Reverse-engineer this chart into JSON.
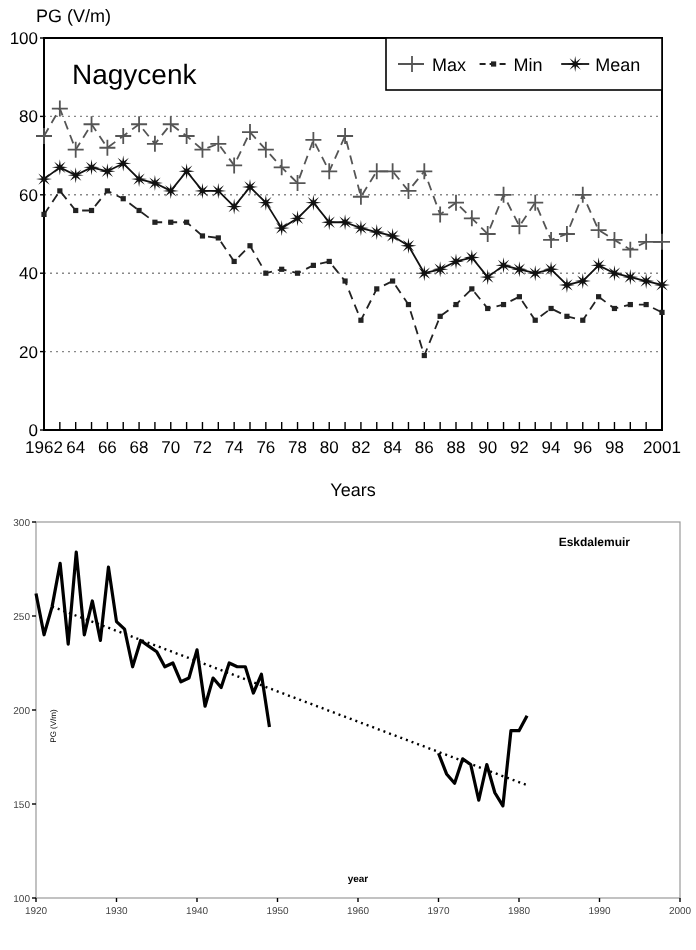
{
  "chart_data": [
    {
      "type": "line",
      "title": "Nagycenk",
      "ylabel": "PG (V/m)",
      "xlabel": "Years",
      "x": [
        1962,
        1963,
        1964,
        1965,
        1966,
        1967,
        1968,
        1969,
        1970,
        1971,
        1972,
        1973,
        1974,
        1975,
        1976,
        1977,
        1978,
        1979,
        1980,
        1981,
        1982,
        1983,
        1984,
        1985,
        1986,
        1987,
        1988,
        1989,
        1990,
        1991,
        1992,
        1993,
        1994,
        1995,
        1996,
        1997,
        1998,
        1999,
        2000,
        2001
      ],
      "xlim": [
        1962,
        2001
      ],
      "ylim": [
        0,
        100
      ],
      "yticks": [
        0,
        20,
        40,
        60,
        80,
        100
      ],
      "xticks": [
        {
          "value": 1962,
          "label": "1962"
        },
        {
          "value": 1963,
          "label": null
        },
        {
          "value": 1964,
          "label": "64"
        },
        {
          "value": 1965,
          "label": null
        },
        {
          "value": 1966,
          "label": "66"
        },
        {
          "value": 1967,
          "label": null
        },
        {
          "value": 1968,
          "label": "68"
        },
        {
          "value": 1969,
          "label": null
        },
        {
          "value": 1970,
          "label": "70"
        },
        {
          "value": 1971,
          "label": null
        },
        {
          "value": 1972,
          "label": "72"
        },
        {
          "value": 1973,
          "label": null
        },
        {
          "value": 1974,
          "label": "74"
        },
        {
          "value": 1975,
          "label": null
        },
        {
          "value": 1976,
          "label": "76"
        },
        {
          "value": 1977,
          "label": null
        },
        {
          "value": 1978,
          "label": "78"
        },
        {
          "value": 1979,
          "label": null
        },
        {
          "value": 1980,
          "label": "80"
        },
        {
          "value": 1981,
          "label": null
        },
        {
          "value": 1982,
          "label": "82"
        },
        {
          "value": 1983,
          "label": null
        },
        {
          "value": 1984,
          "label": "84"
        },
        {
          "value": 1985,
          "label": null
        },
        {
          "value": 1986,
          "label": "86"
        },
        {
          "value": 1987,
          "label": null
        },
        {
          "value": 1988,
          "label": "88"
        },
        {
          "value": 1989,
          "label": null
        },
        {
          "value": 1990,
          "label": "90"
        },
        {
          "value": 1991,
          "label": null
        },
        {
          "value": 1992,
          "label": "92"
        },
        {
          "value": 1993,
          "label": null
        },
        {
          "value": 1994,
          "label": "94"
        },
        {
          "value": 1995,
          "label": null
        },
        {
          "value": 1996,
          "label": "96"
        },
        {
          "value": 1997,
          "label": null
        },
        {
          "value": 1998,
          "label": "98"
        },
        {
          "value": 1999,
          "label": null
        },
        {
          "value": 2000,
          "label": null
        },
        {
          "value": 2001,
          "label": "2001"
        }
      ],
      "grid": "y",
      "legend": "top right",
      "series": [
        {
          "name": "Max",
          "color": "#555555",
          "marker": "cross",
          "line_style": "dashed",
          "values": [
            75,
            82,
            71.5,
            78,
            72,
            75,
            78,
            73,
            78,
            75,
            71.5,
            73,
            67.5,
            76,
            71.5,
            67,
            63,
            74,
            66,
            75,
            59.5,
            66,
            66,
            61,
            66,
            55,
            58,
            54,
            50,
            60,
            52,
            58,
            48.5,
            50,
            60,
            51,
            48.5,
            46,
            48,
            48
          ]
        },
        {
          "name": "Min",
          "color": "#222222",
          "marker": "square",
          "line_style": "dashed",
          "values": [
            55,
            61,
            56,
            56,
            61,
            59,
            56,
            53,
            53,
            53,
            49.5,
            49,
            43,
            47,
            40,
            41,
            40,
            42,
            43,
            38,
            28,
            36,
            38,
            32,
            19,
            29,
            32,
            36,
            31,
            32,
            34,
            28,
            31,
            29,
            28,
            34,
            31,
            32,
            32,
            30
          ]
        },
        {
          "name": "Mean",
          "color": "#111111",
          "marker": "star",
          "line_style": "solid",
          "values": [
            64,
            67,
            65,
            67,
            66,
            68,
            64,
            63,
            61,
            66,
            61,
            61,
            57,
            62,
            58,
            51.5,
            54,
            58,
            53,
            53,
            51.5,
            50.5,
            49.5,
            47,
            40,
            41,
            43,
            44,
            39,
            42,
            41,
            40,
            41,
            37,
            38,
            42,
            40,
            39,
            38,
            37
          ]
        }
      ]
    },
    {
      "type": "line",
      "title": "Eskdalemuir",
      "ylabel": "PG (V/m)",
      "xlabel": "year",
      "xlim": [
        1920,
        2000
      ],
      "xticks": [
        1920,
        1930,
        1940,
        1950,
        1960,
        1970,
        1980,
        1990,
        2000
      ],
      "ylim": [
        100,
        300
      ],
      "yticks": [
        100,
        150,
        200,
        250,
        300
      ],
      "grid": false,
      "legend": false,
      "series": [
        {
          "color": "#000000",
          "line_style": "solid",
          "x": [
            1920,
            1921,
            1922,
            1923,
            1924,
            1925,
            1926,
            1927,
            1928,
            1929,
            1930,
            1931,
            1932,
            1933,
            1934,
            1935,
            1936,
            1937,
            1938,
            1939,
            1940,
            1941,
            1942,
            1943,
            1944,
            1945,
            1946,
            1947,
            1948,
            1949,
            1950,
            1970,
            1971,
            1972,
            1973,
            1974,
            1975,
            1976,
            1977,
            1978,
            1979,
            1980,
            1981
          ],
          "values": [
            262,
            240,
            255,
            278,
            235,
            284,
            240,
            258,
            237,
            276,
            247,
            243,
            223,
            237,
            234,
            231,
            223,
            225,
            215,
            217,
            232,
            202,
            217,
            212,
            225,
            223,
            223,
            209,
            219,
            191,
            null,
            177,
            166,
            161,
            174,
            171,
            152,
            171,
            156,
            149,
            189,
            189,
            197
          ]
        },
        {
          "color": "#000000",
          "line_style": "dotted",
          "x": [
            1922,
            1981
          ],
          "values": [
            255,
            160
          ]
        }
      ]
    }
  ]
}
